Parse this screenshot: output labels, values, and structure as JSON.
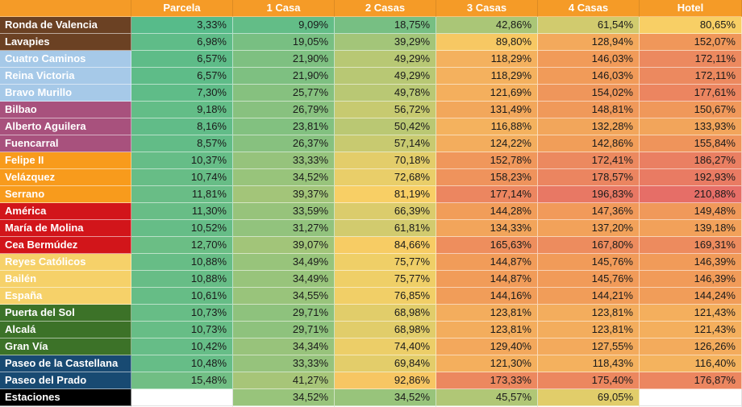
{
  "table": {
    "corner_label": "",
    "columns": [
      "Parcela",
      "1 Casa",
      "2 Casas",
      "3 Casas",
      "4 Casas",
      "Hotel"
    ],
    "rows": [
      {
        "name": "Ronda de Valencia",
        "group": "brown",
        "values": [
          "3,33%",
          "9,09%",
          "18,75%",
          "42,86%",
          "61,54%",
          "80,65%"
        ]
      },
      {
        "name": "Lavapies",
        "group": "brown",
        "values": [
          "6,98%",
          "19,05%",
          "39,29%",
          "89,80%",
          "128,94%",
          "152,07%"
        ]
      },
      {
        "name": "Cuatro Caminos",
        "group": "light_blue",
        "values": [
          "6,57%",
          "21,90%",
          "49,29%",
          "118,29%",
          "146,03%",
          "172,11%"
        ]
      },
      {
        "name": "Reina Victoria",
        "group": "light_blue",
        "values": [
          "6,57%",
          "21,90%",
          "49,29%",
          "118,29%",
          "146,03%",
          "172,11%"
        ]
      },
      {
        "name": "Bravo Murillo",
        "group": "light_blue",
        "values": [
          "7,30%",
          "25,77%",
          "49,78%",
          "121,69%",
          "154,02%",
          "177,61%"
        ]
      },
      {
        "name": "Bilbao",
        "group": "purple",
        "values": [
          "9,18%",
          "26,79%",
          "56,72%",
          "131,49%",
          "148,81%",
          "150,67%"
        ]
      },
      {
        "name": "Alberto Aguilera",
        "group": "purple",
        "values": [
          "8,16%",
          "23,81%",
          "50,42%",
          "116,88%",
          "132,28%",
          "133,93%"
        ]
      },
      {
        "name": "Fuencarral",
        "group": "purple",
        "values": [
          "8,57%",
          "26,37%",
          "57,14%",
          "124,22%",
          "142,86%",
          "155,84%"
        ]
      },
      {
        "name": "Felipe II",
        "group": "orange",
        "values": [
          "10,37%",
          "33,33%",
          "70,18%",
          "152,78%",
          "172,41%",
          "186,27%"
        ]
      },
      {
        "name": "Velázquez",
        "group": "orange",
        "values": [
          "10,74%",
          "34,52%",
          "72,68%",
          "158,23%",
          "178,57%",
          "192,93%"
        ]
      },
      {
        "name": "Serrano",
        "group": "orange",
        "values": [
          "11,81%",
          "39,37%",
          "81,19%",
          "177,14%",
          "196,83%",
          "210,88%"
        ]
      },
      {
        "name": "América",
        "group": "red",
        "values": [
          "11,30%",
          "33,59%",
          "66,39%",
          "144,28%",
          "147,36%",
          "149,48%"
        ]
      },
      {
        "name": "María de Molina",
        "group": "red",
        "values": [
          "10,52%",
          "31,27%",
          "61,81%",
          "134,33%",
          "137,20%",
          "139,18%"
        ]
      },
      {
        "name": "Cea Bermúdez",
        "group": "red",
        "values": [
          "12,70%",
          "39,07%",
          "84,66%",
          "165,63%",
          "167,80%",
          "169,31%"
        ]
      },
      {
        "name": "Reyes Católicos",
        "group": "yellow",
        "values": [
          "10,88%",
          "34,49%",
          "75,77%",
          "144,87%",
          "145,76%",
          "146,39%"
        ]
      },
      {
        "name": "Bailén",
        "group": "yellow",
        "values": [
          "10,88%",
          "34,49%",
          "75,77%",
          "144,87%",
          "145,76%",
          "146,39%"
        ]
      },
      {
        "name": "España",
        "group": "yellow",
        "values": [
          "10,61%",
          "34,55%",
          "76,85%",
          "144,16%",
          "144,21%",
          "144,24%"
        ]
      },
      {
        "name": "Puerta del Sol",
        "group": "green",
        "values": [
          "10,73%",
          "29,71%",
          "68,98%",
          "123,81%",
          "123,81%",
          "121,43%"
        ]
      },
      {
        "name": "Alcalá",
        "group": "green",
        "values": [
          "10,73%",
          "29,71%",
          "68,98%",
          "123,81%",
          "123,81%",
          "121,43%"
        ]
      },
      {
        "name": "Gran Vía",
        "group": "green",
        "values": [
          "10,42%",
          "34,34%",
          "74,40%",
          "129,40%",
          "127,55%",
          "126,26%"
        ]
      },
      {
        "name": "Paseo de la Castellana",
        "group": "dark_blue",
        "values": [
          "10,48%",
          "33,33%",
          "69,84%",
          "121,30%",
          "118,43%",
          "116,40%"
        ]
      },
      {
        "name": "Paseo del Prado",
        "group": "dark_blue",
        "values": [
          "15,48%",
          "41,27%",
          "92,86%",
          "173,33%",
          "175,40%",
          "176,87%"
        ]
      },
      {
        "name": "Estaciones",
        "group": "black",
        "values": [
          "",
          "34,52%",
          "34,52%",
          "45,57%",
          "69,05%",
          ""
        ]
      }
    ]
  },
  "colors": {
    "header_bg": "#F59B27",
    "header_text": "#FFFFFF",
    "label_text": "#FFFFFF",
    "cell_text": "#1A1A1A",
    "empty_cell_bg": "#FFFFFF",
    "groups": {
      "brown": "#6B4123",
      "light_blue": "#A6C9E8",
      "purple": "#A8517D",
      "orange": "#F89B1C",
      "red": "#D2151A",
      "yellow": "#F6D169",
      "green": "#3C7228",
      "dark_blue": "#184A72",
      "black": "#000000"
    },
    "heatmap_stops": [
      {
        "value": 3.33,
        "color": "#57BB8A"
      },
      {
        "value": 80.0,
        "color": "#F8D065"
      },
      {
        "value": 145.0,
        "color": "#F19C59"
      },
      {
        "value": 211.0,
        "color": "#E66E67"
      }
    ]
  }
}
